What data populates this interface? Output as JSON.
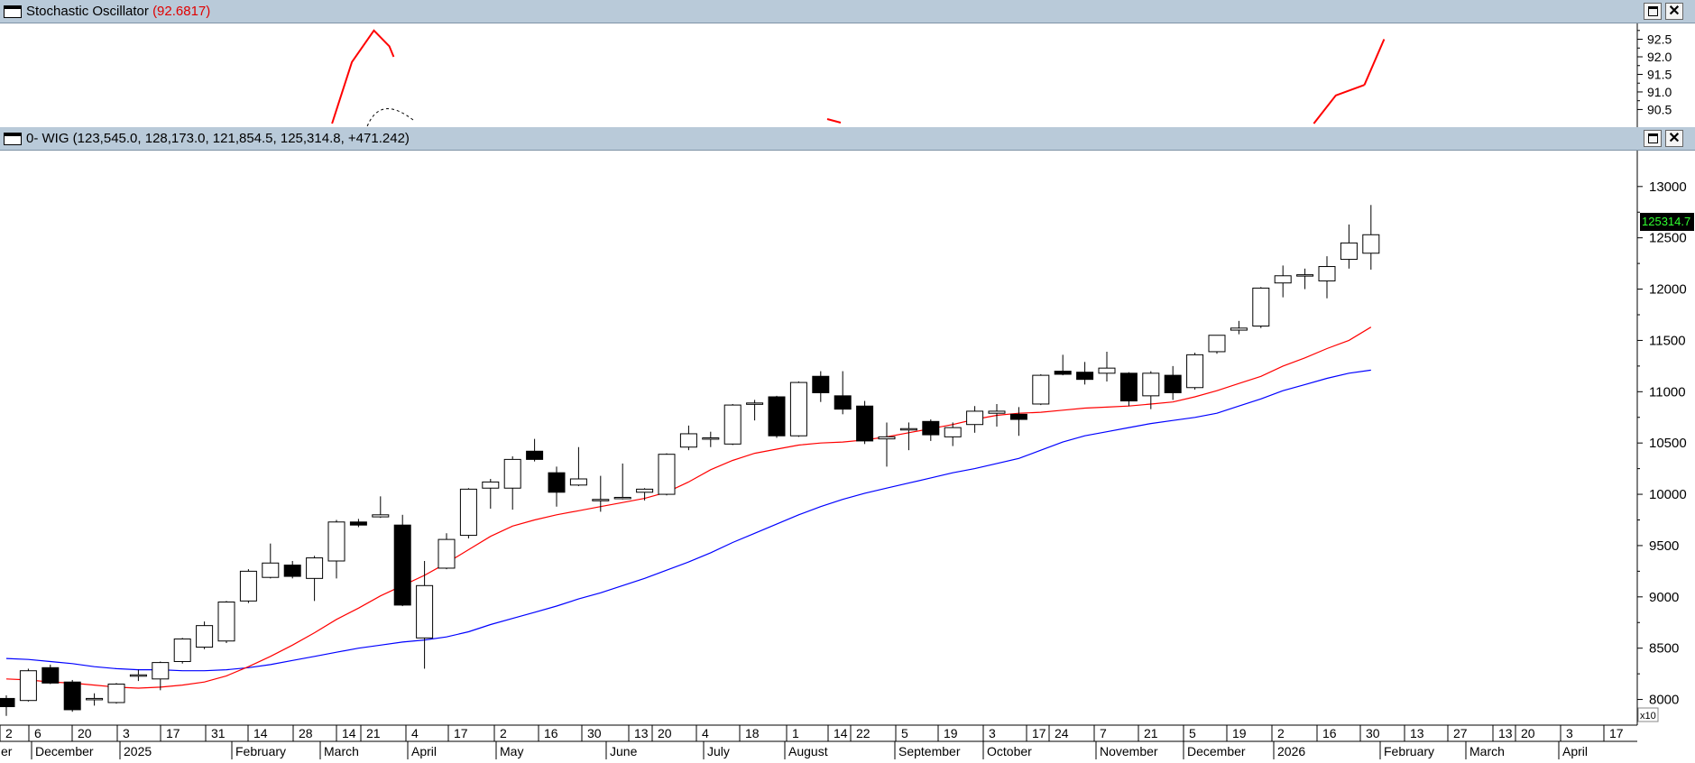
{
  "stochastic_panel": {
    "title": "Stochastic Oscillator",
    "value": "(92.6817)",
    "y_ticks": [
      "92.5",
      "92.0",
      "91.5",
      "91.0",
      "90.5"
    ],
    "line_color": "#ff0000"
  },
  "price_panel": {
    "title": "0- WIG (123,545.0, 128,173.0, 121,854.5, 125,314.8, +471.242)",
    "last_price": "125314.7",
    "scale_label": "x10",
    "y_ticks": [
      "13000",
      "12500",
      "12000",
      "11500",
      "11000",
      "10500",
      "10000",
      "9500",
      "9000",
      "8500",
      "8000"
    ],
    "colors": {
      "ma_short": "#ff0000",
      "ma_long": "#0000ff",
      "price_badge_bg": "#000000",
      "price_badge_text": "#30ff30"
    }
  },
  "window_controls": {
    "maximize_icon": "maximize-icon",
    "close_label": "✕"
  },
  "x_axis": {
    "day_ticks": [
      "2",
      "6",
      "20",
      "3",
      "17",
      "31",
      "14",
      "28",
      "14",
      "21",
      "4",
      "17",
      "2",
      "16",
      "30",
      "13",
      "20",
      "4",
      "18",
      "1",
      "14",
      "22",
      "5",
      "19",
      "3",
      "17",
      "24",
      "7",
      "21",
      "5",
      "19",
      "2",
      "16",
      "30",
      "13",
      "27",
      "13",
      "20",
      "3",
      "17"
    ],
    "month_labels": [
      "er",
      "December",
      "2025",
      "February",
      "March",
      "April",
      "May",
      "June",
      "July",
      "August",
      "September",
      "October",
      "November",
      "December",
      "2026",
      "February",
      "March",
      "April"
    ]
  },
  "chart_data": {
    "type": "candlestick",
    "title": "0- WIG",
    "y_unit_note": "x10",
    "ylim": [
      7750,
      13350
    ],
    "timeframe": "weekly",
    "candles": [
      {
        "o": 8010,
        "h": 8040,
        "l": 7840,
        "c": 7930
      },
      {
        "o": 7990,
        "h": 8300,
        "l": 7980,
        "c": 8280
      },
      {
        "o": 8310,
        "h": 8340,
        "l": 8150,
        "c": 8160
      },
      {
        "o": 8170,
        "h": 8190,
        "l": 7880,
        "c": 7900
      },
      {
        "o": 8000,
        "h": 8060,
        "l": 7940,
        "c": 8010
      },
      {
        "o": 7970,
        "h": 8160,
        "l": 7960,
        "c": 8150
      },
      {
        "o": 8240,
        "h": 8290,
        "l": 8180,
        "c": 8240
      },
      {
        "o": 8200,
        "h": 8370,
        "l": 8090,
        "c": 8360
      },
      {
        "o": 8370,
        "h": 8600,
        "l": 8350,
        "c": 8590
      },
      {
        "o": 8510,
        "h": 8760,
        "l": 8490,
        "c": 8720
      },
      {
        "o": 8570,
        "h": 8960,
        "l": 8550,
        "c": 8950
      },
      {
        "o": 8960,
        "h": 9270,
        "l": 8940,
        "c": 9250
      },
      {
        "o": 9190,
        "h": 9520,
        "l": 9180,
        "c": 9330
      },
      {
        "o": 9310,
        "h": 9350,
        "l": 9180,
        "c": 9200
      },
      {
        "o": 9180,
        "h": 9400,
        "l": 8960,
        "c": 9380
      },
      {
        "o": 9350,
        "h": 9750,
        "l": 9180,
        "c": 9730
      },
      {
        "o": 9730,
        "h": 9760,
        "l": 9680,
        "c": 9700
      },
      {
        "o": 9780,
        "h": 9980,
        "l": 9770,
        "c": 9800
      },
      {
        "o": 9700,
        "h": 9800,
        "l": 8910,
        "c": 8920
      },
      {
        "o": 8600,
        "h": 9350,
        "l": 8300,
        "c": 9110
      },
      {
        "o": 9280,
        "h": 9620,
        "l": 9270,
        "c": 9560
      },
      {
        "o": 9600,
        "h": 10060,
        "l": 9570,
        "c": 10050
      },
      {
        "o": 10060,
        "h": 10150,
        "l": 9860,
        "c": 10120
      },
      {
        "o": 10060,
        "h": 10370,
        "l": 9850,
        "c": 10340
      },
      {
        "o": 10420,
        "h": 10540,
        "l": 10320,
        "c": 10340
      },
      {
        "o": 10210,
        "h": 10270,
        "l": 9880,
        "c": 10020
      },
      {
        "o": 10090,
        "h": 10460,
        "l": 10080,
        "c": 10150
      },
      {
        "o": 9940,
        "h": 10180,
        "l": 9830,
        "c": 9950
      },
      {
        "o": 9970,
        "h": 10300,
        "l": 9950,
        "c": 9970
      },
      {
        "o": 10020,
        "h": 10060,
        "l": 9940,
        "c": 10050
      },
      {
        "o": 10000,
        "h": 10400,
        "l": 9990,
        "c": 10390
      },
      {
        "o": 10460,
        "h": 10670,
        "l": 10430,
        "c": 10590
      },
      {
        "o": 10540,
        "h": 10610,
        "l": 10460,
        "c": 10550
      },
      {
        "o": 10490,
        "h": 10880,
        "l": 10480,
        "c": 10870
      },
      {
        "o": 10880,
        "h": 10920,
        "l": 10720,
        "c": 10890
      },
      {
        "o": 10950,
        "h": 10960,
        "l": 10550,
        "c": 10570
      },
      {
        "o": 10570,
        "h": 11100,
        "l": 10560,
        "c": 11090
      },
      {
        "o": 11150,
        "h": 11200,
        "l": 10900,
        "c": 10990
      },
      {
        "o": 10960,
        "h": 11200,
        "l": 10780,
        "c": 10830
      },
      {
        "o": 10860,
        "h": 10910,
        "l": 10490,
        "c": 10520
      },
      {
        "o": 10540,
        "h": 10700,
        "l": 10270,
        "c": 10560
      },
      {
        "o": 10630,
        "h": 10700,
        "l": 10430,
        "c": 10640
      },
      {
        "o": 10710,
        "h": 10730,
        "l": 10520,
        "c": 10580
      },
      {
        "o": 10560,
        "h": 10700,
        "l": 10470,
        "c": 10650
      },
      {
        "o": 10680,
        "h": 10860,
        "l": 10600,
        "c": 10810
      },
      {
        "o": 10790,
        "h": 10880,
        "l": 10660,
        "c": 10810
      },
      {
        "o": 10780,
        "h": 10850,
        "l": 10570,
        "c": 10730
      },
      {
        "o": 10880,
        "h": 11170,
        "l": 10870,
        "c": 11160
      },
      {
        "o": 11200,
        "h": 11360,
        "l": 11160,
        "c": 11170
      },
      {
        "o": 11190,
        "h": 11290,
        "l": 11070,
        "c": 11120
      },
      {
        "o": 11180,
        "h": 11390,
        "l": 11100,
        "c": 11230
      },
      {
        "o": 11180,
        "h": 11190,
        "l": 10860,
        "c": 10910
      },
      {
        "o": 10960,
        "h": 11200,
        "l": 10830,
        "c": 11180
      },
      {
        "o": 11160,
        "h": 11250,
        "l": 10920,
        "c": 10990
      },
      {
        "o": 11040,
        "h": 11380,
        "l": 11020,
        "c": 11360
      },
      {
        "o": 11390,
        "h": 11550,
        "l": 11370,
        "c": 11550
      },
      {
        "o": 11600,
        "h": 11690,
        "l": 11560,
        "c": 11620
      },
      {
        "o": 11640,
        "h": 12020,
        "l": 11620,
        "c": 12010
      },
      {
        "o": 12060,
        "h": 12230,
        "l": 11920,
        "c": 12130
      },
      {
        "o": 12130,
        "h": 12200,
        "l": 12000,
        "c": 12140
      },
      {
        "o": 12080,
        "h": 12320,
        "l": 11910,
        "c": 12220
      },
      {
        "o": 12290,
        "h": 12630,
        "l": 12200,
        "c": 12450
      },
      {
        "o": 12350,
        "h": 12820,
        "l": 12190,
        "c": 12530
      }
    ],
    "ma_short": [
      8200,
      8190,
      8170,
      8160,
      8140,
      8120,
      8110,
      8120,
      8140,
      8170,
      8230,
      8320,
      8420,
      8530,
      8650,
      8780,
      8890,
      9010,
      9110,
      9210,
      9330,
      9460,
      9590,
      9690,
      9750,
      9800,
      9840,
      9880,
      9920,
      9960,
      10020,
      10120,
      10240,
      10330,
      10400,
      10440,
      10480,
      10500,
      10510,
      10530,
      10560,
      10600,
      10640,
      10680,
      10730,
      10770,
      10790,
      10800,
      10820,
      10840,
      10850,
      10860,
      10880,
      10900,
      10950,
      11010,
      11080,
      11150,
      11250,
      11330,
      11420,
      11500,
      11630
    ],
    "ma_long": [
      8400,
      8390,
      8370,
      8350,
      8320,
      8300,
      8290,
      8290,
      8280,
      8280,
      8290,
      8310,
      8340,
      8380,
      8420,
      8460,
      8500,
      8530,
      8560,
      8580,
      8610,
      8660,
      8730,
      8790,
      8850,
      8910,
      8980,
      9040,
      9110,
      9180,
      9260,
      9340,
      9430,
      9530,
      9620,
      9710,
      9800,
      9880,
      9950,
      10010,
      10060,
      10110,
      10160,
      10210,
      10250,
      10300,
      10350,
      10430,
      10510,
      10570,
      10610,
      10650,
      10690,
      10720,
      10750,
      10790,
      10860,
      10930,
      11010,
      11070,
      11130,
      11180,
      11210
    ],
    "stochastic": {
      "name": "Stochastic Oscillator",
      "last_value": 92.6817,
      "ylim": [
        90.1,
        92.95
      ],
      "visible_segments": [
        {
          "x_index": [
            14.8,
            15.7,
            16.7,
            17.4,
            17.6
          ],
          "values": [
            90.1,
            91.85,
            92.75,
            92.3,
            92.0
          ]
        },
        {
          "x_index": [
            59.4,
            60.4,
            61.7
          ],
          "values": [
            90.1,
            90.9,
            91.2
          ]
        },
        {
          "x_index": [
            61.7,
            62.6
          ],
          "values": [
            91.2,
            92.5
          ]
        }
      ]
    }
  }
}
